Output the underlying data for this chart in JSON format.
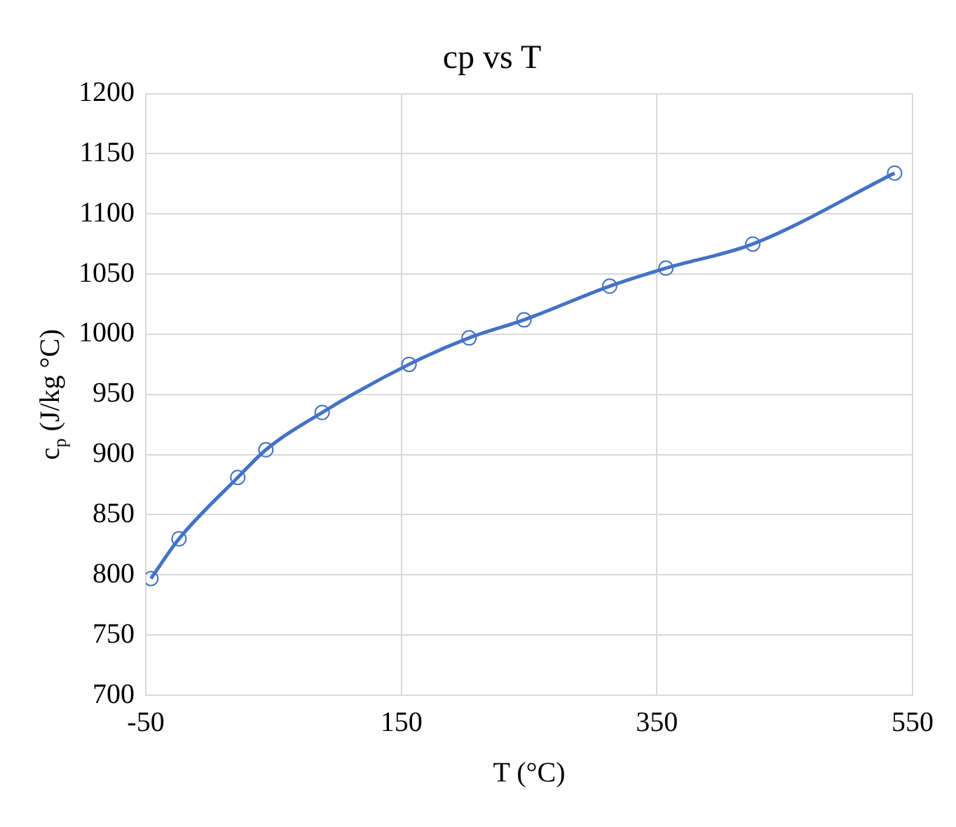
{
  "chart_data": {
    "type": "line",
    "title": "cp vs T",
    "xlabel": "T (°C)",
    "ylabel": "c$_{p}$ (J/kg °C)",
    "series": [
      {
        "color": "#4472c4",
        "x": [
          -46,
          -24,
          22,
          44,
          88,
          156,
          203,
          246,
          313,
          357,
          425,
          536
        ],
        "values": [
          797,
          830,
          881,
          904,
          935,
          975,
          997,
          1012,
          1040,
          1055,
          1075,
          1134
        ]
      }
    ],
    "xlim": [
      -50,
      550
    ],
    "xticks": [
      -50,
      150,
      350,
      550
    ],
    "ylim": [
      700,
      1200
    ],
    "yticks": [
      700,
      750,
      800,
      850,
      900,
      950,
      1000,
      1050,
      1100,
      1150,
      1200
    ],
    "grid": true,
    "legend": false,
    "marker": "circle",
    "line_style": "solid"
  }
}
